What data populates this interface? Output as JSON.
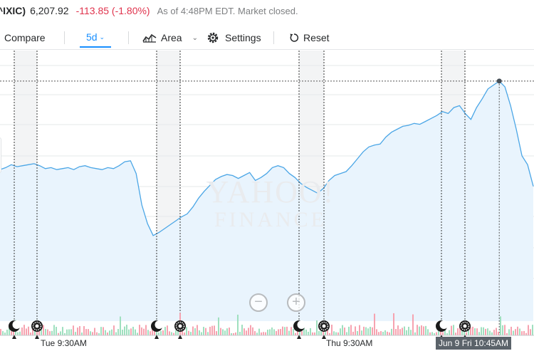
{
  "quote": {
    "symbol": "^IXIC)",
    "price": "6,207.92",
    "change": "-113.85 (-1.80%)",
    "as_of": "As of 4:48PM EDT. Market closed."
  },
  "toolbar": {
    "compare_label": "Compare",
    "range_label": "5d",
    "chart_type_label": "Area",
    "settings_label": "Settings",
    "reset_label": "Reset"
  },
  "icons": {
    "range_chevron": "chevron-down-icon",
    "chart_type": "area-chart-icon",
    "chart_type_chevron": "chevron-down-icon",
    "settings": "gear-icon",
    "reset": "reset-icon",
    "zoom_out": "zoom-out-icon",
    "zoom_in": "zoom-in-icon",
    "market_close": "moon-icon",
    "market_open": "sun-icon"
  },
  "watermark": {
    "line1": "YAHOO!",
    "line2": "FINANCE"
  },
  "zoom": {
    "out_symbol": "−",
    "in_symbol": "+"
  },
  "x_axis_labels": [
    "Tue 9:30AM",
    "Thu 9:30AM",
    "Jun 9 Fri 10:45AM"
  ],
  "colors": {
    "line": "#4ba6e6",
    "area": "#e9f4fd",
    "negative": "#e0334d",
    "accent": "#188fff",
    "volume_up": "#9fe0bf",
    "volume_down": "#f6a3b0"
  },
  "chart_data": {
    "type": "area",
    "series": [
      {
        "name": "^IXIC",
        "values": [
          6208,
          6212,
          6218,
          6214,
          6216,
          6218,
          6220,
          6216,
          6210,
          6212,
          6208,
          6210,
          6212,
          6208,
          6214,
          6216,
          6212,
          6210,
          6208,
          6212,
          6210,
          6216,
          6224,
          6226,
          6200,
          6136,
          6098,
          6074,
          6080,
          6088,
          6096,
          6104,
          6112,
          6118,
          6132,
          6150,
          6164,
          6176,
          6188,
          6194,
          6198,
          6196,
          6190,
          6196,
          6202,
          6186,
          6192,
          6200,
          6212,
          6216,
          6212,
          6200,
          6192,
          6180,
          6172,
          6166,
          6160,
          6170,
          6186,
          6196,
          6200,
          6204,
          6216,
          6230,
          6244,
          6254,
          6258,
          6260,
          6274,
          6284,
          6290,
          6296,
          6298,
          6302,
          6300,
          6306,
          6312,
          6318,
          6326,
          6322,
          6334,
          6338,
          6322,
          6310,
          6334,
          6352,
          6372,
          6380,
          6388,
          6376,
          6338,
          6290,
          6236,
          6218,
          6174
        ]
      }
    ],
    "ylim": [
      5900,
      6450
    ],
    "grid": true,
    "legend": "none"
  }
}
